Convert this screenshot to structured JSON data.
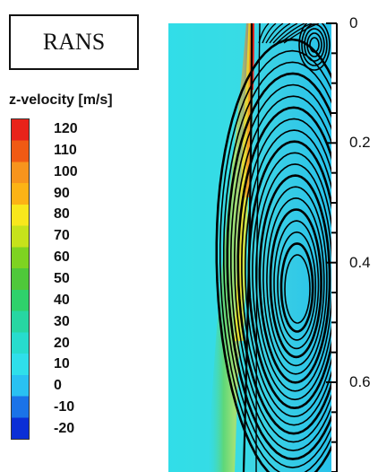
{
  "title_box": "RANS",
  "legend": {
    "title": "z-velocity [m/s]",
    "ticks": [
      "120",
      "110",
      "100",
      "90",
      "80",
      "70",
      "60",
      "50",
      "40",
      "30",
      "20",
      "10",
      "0",
      "-10",
      "-20"
    ],
    "colors": [
      "#e8231a",
      "#f05a14",
      "#f7941d",
      "#fcb315",
      "#f8e71c",
      "#c6e21b",
      "#7ed321",
      "#4fc83a",
      "#2fd16b",
      "#27d6a2",
      "#27dccd",
      "#2fdfea",
      "#29c1f2",
      "#1a73e8",
      "#0b2fd6"
    ]
  },
  "chart_data": {
    "type": "heatmap",
    "title": "RANS",
    "colorbar_label": "z-velocity [m/s]",
    "colorbar_range": [
      -20,
      120
    ],
    "colorbar_ticks": [
      120,
      110,
      100,
      90,
      80,
      70,
      60,
      50,
      40,
      30,
      20,
      10,
      0,
      -10,
      -20
    ],
    "y_axis": {
      "side": "right",
      "ticks": [
        0,
        0.2,
        0.4,
        0.6
      ],
      "labels": [
        "0",
        "0.2",
        "0.4",
        "0.6"
      ],
      "range": [
        0,
        0.75
      ]
    },
    "field": {
      "background_color": "#2fdfea",
      "jet_colors": [
        "#e8231a",
        "#f7941d",
        "#f8e71c",
        "#7ed321",
        "#27d6a2"
      ],
      "streamlines": "recirculation vortex"
    }
  }
}
